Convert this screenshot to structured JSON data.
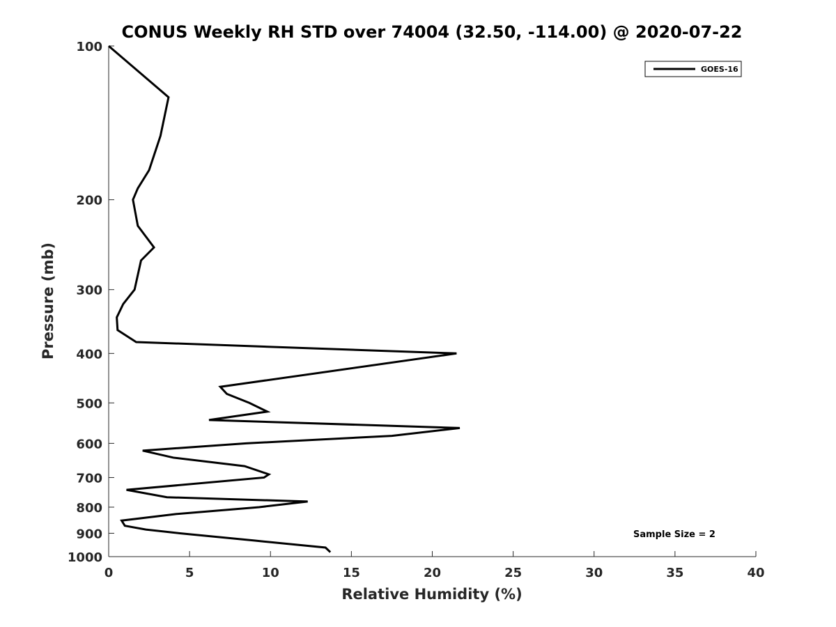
{
  "chart_data": {
    "type": "line",
    "title": "CONUS Weekly RH STD over 74004 (32.50, -114.00) @ 2020-07-22",
    "xlabel": "Relative Humidity (%)",
    "ylabel": "Pressure (mb)",
    "xlim": [
      0,
      40
    ],
    "ylim": [
      100,
      1000
    ],
    "y_scale": "log",
    "y_reversed": true,
    "x_ticks": [
      "0",
      "5",
      "10",
      "15",
      "20",
      "25",
      "30",
      "35",
      "40"
    ],
    "y_ticks": [
      "100",
      "200",
      "300",
      "400",
      "500",
      "600",
      "700",
      "800",
      "900",
      "1000"
    ],
    "grid": false,
    "legend_position": "top-right",
    "annotation": "Sample Size = 2",
    "series": [
      {
        "name": "GOES-16",
        "color": "#000000",
        "points": [
          {
            "x": 0.0,
            "y": 100
          },
          {
            "x": 3.7,
            "y": 126
          },
          {
            "x": 3.2,
            "y": 150
          },
          {
            "x": 2.5,
            "y": 175
          },
          {
            "x": 1.8,
            "y": 190
          },
          {
            "x": 1.5,
            "y": 200
          },
          {
            "x": 1.8,
            "y": 225
          },
          {
            "x": 2.8,
            "y": 248
          },
          {
            "x": 2.0,
            "y": 263
          },
          {
            "x": 1.6,
            "y": 300
          },
          {
            "x": 0.9,
            "y": 320
          },
          {
            "x": 0.5,
            "y": 340
          },
          {
            "x": 0.55,
            "y": 360
          },
          {
            "x": 1.7,
            "y": 380
          },
          {
            "x": 21.5,
            "y": 400
          },
          {
            "x": 6.9,
            "y": 465
          },
          {
            "x": 7.3,
            "y": 480
          },
          {
            "x": 8.7,
            "y": 500
          },
          {
            "x": 9.8,
            "y": 520
          },
          {
            "x": 6.2,
            "y": 540
          },
          {
            "x": 21.7,
            "y": 560
          },
          {
            "x": 17.5,
            "y": 580
          },
          {
            "x": 8.5,
            "y": 600
          },
          {
            "x": 2.1,
            "y": 620
          },
          {
            "x": 4.0,
            "y": 640
          },
          {
            "x": 8.4,
            "y": 665
          },
          {
            "x": 9.9,
            "y": 690
          },
          {
            "x": 9.6,
            "y": 700
          },
          {
            "x": 1.1,
            "y": 740
          },
          {
            "x": 3.6,
            "y": 765
          },
          {
            "x": 12.3,
            "y": 780
          },
          {
            "x": 9.3,
            "y": 800
          },
          {
            "x": 4.2,
            "y": 825
          },
          {
            "x": 0.8,
            "y": 850
          },
          {
            "x": 1.0,
            "y": 870
          },
          {
            "x": 2.3,
            "y": 885
          },
          {
            "x": 4.4,
            "y": 900
          },
          {
            "x": 9.0,
            "y": 930
          },
          {
            "x": 13.4,
            "y": 960
          },
          {
            "x": 13.7,
            "y": 980
          }
        ]
      }
    ]
  }
}
